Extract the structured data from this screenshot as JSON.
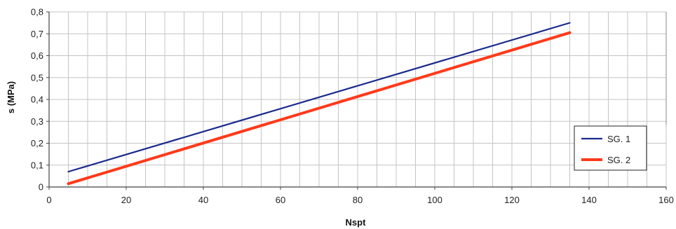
{
  "chart_data": {
    "type": "line",
    "title": "",
    "xlabel": "Nspt",
    "ylabel": "s (MPa)",
    "xlim": [
      0,
      160
    ],
    "ylim": [
      0,
      0.8
    ],
    "xticks": [
      0,
      20,
      40,
      60,
      80,
      100,
      120,
      140,
      160
    ],
    "xtick_labels": [
      "0",
      "20",
      "40",
      "60",
      "80",
      "100",
      "120",
      "140",
      "160"
    ],
    "yticks": [
      0,
      0.1,
      0.2,
      0.3,
      0.4,
      0.5,
      0.6,
      0.7,
      0.8
    ],
    "ytick_labels": [
      "0",
      "0,1",
      "0,2",
      "0,3",
      "0,4",
      "0,5",
      "0,6",
      "0,7",
      "0,8"
    ],
    "grid": true,
    "legend_position": "bottom-right",
    "series": [
      {
        "name": "SG. 1",
        "color": "#1a2a8c",
        "x": [
          5,
          135
        ],
        "y": [
          0.07,
          0.75
        ]
      },
      {
        "name": "SG. 2",
        "color": "#ff3a1a",
        "x": [
          5,
          135
        ],
        "y": [
          0.015,
          0.705
        ]
      }
    ]
  }
}
